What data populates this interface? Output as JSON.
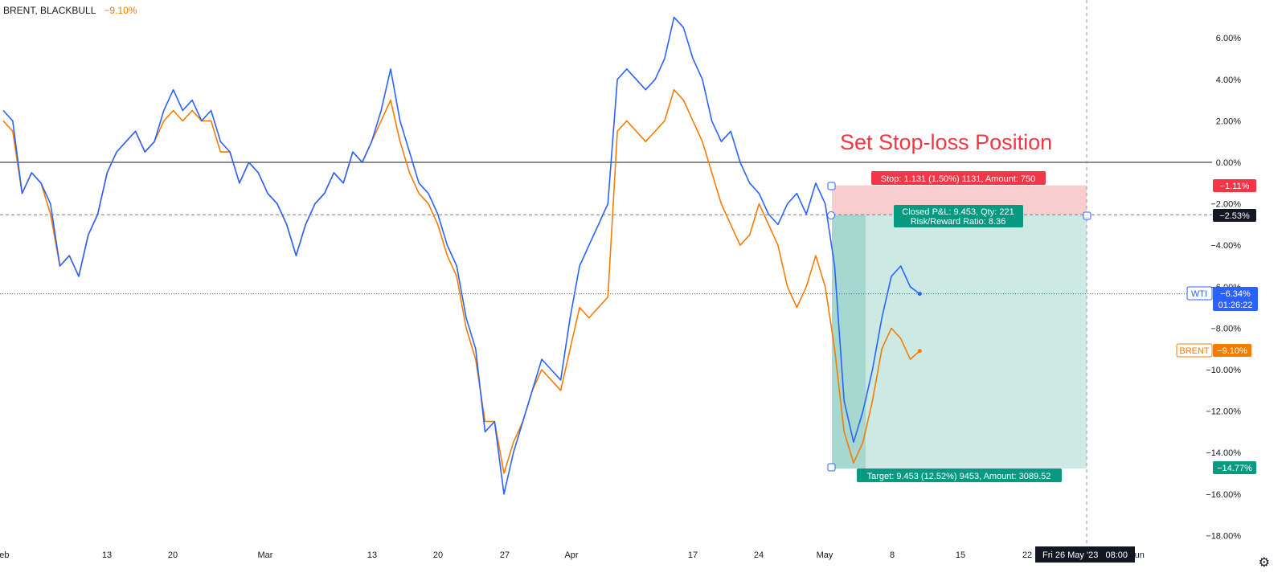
{
  "legend": {
    "symbol": "BRENT, BLACKBULL",
    "change": "−9.10%"
  },
  "annotation": {
    "title": "Set Stop-loss Position",
    "stop_label": "Stop: 1.131 (1.50%) 1131, Amount: 750",
    "pnl_line1": "Closed P&L: 9.453, Qty: 221",
    "pnl_line2": "Risk/Reward Ratio: 8.36",
    "target_label": "Target: 9.453 (12.52%) 9453, Amount: 3089.52"
  },
  "badges": {
    "stop": "−1.11%",
    "entry": "−2.53%",
    "target": "−14.77%",
    "wti_name": "WTI",
    "wti_value": "−6.34%",
    "wti_timer": "01:26:22",
    "brent_name": "BRENT",
    "brent_value": "−9.10%"
  },
  "crosshair_date": "Fri 26 May '23   08:00",
  "colors": {
    "wti": "#2962ff",
    "brent": "#f57c00",
    "stop_zone": "#f8cdd0",
    "target_zone": "#cde9e4",
    "target_zone_dark": "#a6d8cf",
    "stop_label_bg": "#f23645",
    "target_label_bg": "#089981",
    "title": "#f23645"
  },
  "chart_data": {
    "type": "line",
    "title": "",
    "xlabel": "",
    "ylabel": "",
    "y_unit": "%",
    "ylim": [
      -18.5,
      7.5
    ],
    "y_ticks": [
      "6.00%",
      "4.00%",
      "2.00%",
      "0.00%",
      "−2.00%",
      "−4.00%",
      "−6.00%",
      "−8.00%",
      "−10.00%",
      "−12.00%",
      "−14.00%",
      "−16.00%",
      "−18.00%"
    ],
    "x_ticks": [
      "Feb",
      "13",
      "20",
      "Mar",
      "13",
      "20",
      "27",
      "Apr",
      "17",
      "24",
      "May",
      "8",
      "15",
      "22",
      "Jun"
    ],
    "stop_level": -1.11,
    "entry_level": -2.53,
    "target_level": -14.77,
    "series": [
      {
        "name": "WTI",
        "last": -6.34,
        "values": [
          2.5,
          2.0,
          -1.5,
          -0.5,
          -1.0,
          -2.0,
          -5.0,
          -4.5,
          -5.5,
          -3.5,
          -2.5,
          -0.5,
          0.5,
          1.0,
          1.5,
          0.5,
          1.0,
          2.5,
          3.5,
          2.5,
          3.0,
          2.0,
          2.5,
          1.0,
          0.5,
          -1.0,
          0.0,
          -0.5,
          -1.5,
          -2.0,
          -3.0,
          -4.5,
          -3.0,
          -2.0,
          -1.5,
          -0.5,
          -1.0,
          0.5,
          0.0,
          1.0,
          2.5,
          4.5,
          2.0,
          0.5,
          -1.0,
          -1.5,
          -2.5,
          -4.0,
          -5.0,
          -7.5,
          -9.0,
          -13.0,
          -12.5,
          -16.0,
          -14.0,
          -12.5,
          -11.0,
          -9.5,
          -10.0,
          -10.5,
          -7.5,
          -5.0,
          -4.0,
          -3.0,
          -2.0,
          4.0,
          4.5,
          4.0,
          3.5,
          4.0,
          5.0,
          7.0,
          6.5,
          5.0,
          4.0,
          2.0,
          1.0,
          1.5,
          0.0,
          -1.0,
          -1.5,
          -2.5,
          -3.0,
          -2.0,
          -1.5,
          -2.5,
          -1.0,
          -2.0,
          -5.0,
          -11.5,
          -13.5,
          -12.0,
          -10.0,
          -7.5,
          -5.5,
          -5.0,
          -6.0,
          -6.34
        ]
      },
      {
        "name": "BRENT",
        "last": -9.1,
        "values": [
          2.0,
          1.5,
          -1.5,
          -0.5,
          -1.0,
          -2.5,
          -5.0,
          -4.5,
          -5.5,
          -3.5,
          -2.5,
          -0.5,
          0.5,
          1.0,
          1.5,
          0.5,
          1.0,
          2.0,
          2.5,
          2.0,
          2.5,
          2.0,
          2.0,
          0.5,
          0.5,
          -1.0,
          0.0,
          -0.5,
          -1.5,
          -2.0,
          -3.0,
          -4.5,
          -3.0,
          -2.0,
          -1.5,
          -0.5,
          -1.0,
          0.5,
          0.0,
          1.0,
          2.0,
          3.0,
          1.0,
          -0.5,
          -1.5,
          -2.0,
          -3.0,
          -4.5,
          -5.5,
          -8.0,
          -9.5,
          -12.5,
          -12.5,
          -15.0,
          -13.5,
          -12.5,
          -11.0,
          -10.0,
          -10.5,
          -11.0,
          -9.0,
          -7.0,
          -7.5,
          -7.0,
          -6.5,
          1.5,
          2.0,
          1.5,
          1.0,
          1.5,
          2.0,
          3.5,
          3.0,
          2.0,
          1.0,
          -0.5,
          -2.0,
          -3.0,
          -4.0,
          -3.5,
          -2.0,
          -3.0,
          -4.0,
          -6.0,
          -7.0,
          -6.0,
          -4.5,
          -6.0,
          -9.0,
          -13.0,
          -14.5,
          -13.5,
          -11.5,
          -9.0,
          -8.0,
          -8.5,
          -9.5,
          -9.1
        ]
      }
    ]
  }
}
